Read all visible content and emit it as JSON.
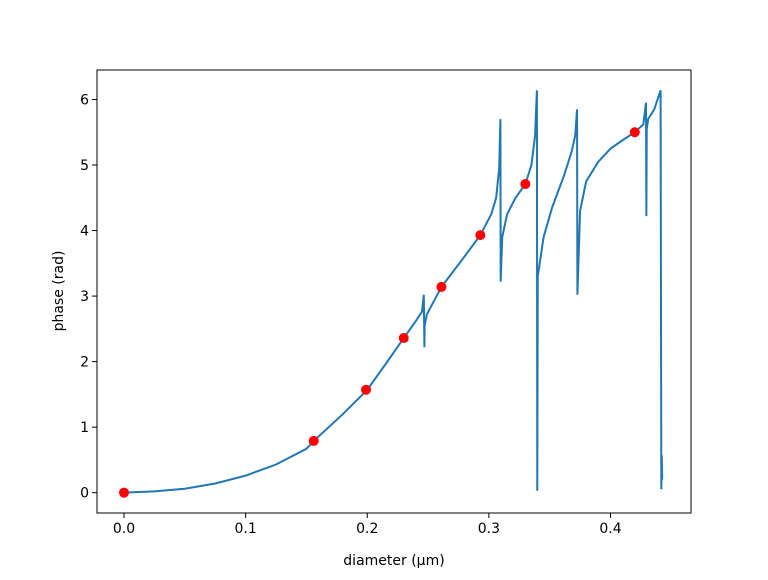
{
  "chart_data": {
    "type": "line",
    "xlabel": "diameter (μm)",
    "ylabel": "phase (rad)",
    "xlim": [
      -0.0222,
      0.4662
    ],
    "ylim": [
      -0.31,
      6.45
    ],
    "xticks": [
      {
        "value": 0,
        "label": "0.0"
      },
      0.1,
      0.2,
      0.3,
      0.4
    ],
    "yticks": [
      0,
      1,
      2,
      3,
      4,
      5,
      6
    ],
    "series": [
      {
        "type": "line",
        "color": "#1f77b4",
        "x": [
          0,
          0.025,
          0.05,
          0.075,
          0.1,
          0.125,
          0.15,
          0.156,
          0.18,
          0.2,
          0.215,
          0.23,
          0.24,
          0.245,
          0.2465,
          0.247,
          0.2472,
          0.249,
          0.261,
          0.277,
          0.293,
          0.302,
          0.306,
          0.3085,
          0.3095,
          0.3097,
          0.311,
          0.315,
          0.322,
          0.33,
          0.335,
          0.338,
          0.3395,
          0.3398,
          0.3402,
          0.345,
          0.352,
          0.362,
          0.368,
          0.371,
          0.3725,
          0.3728,
          0.375,
          0.38,
          0.39,
          0.4,
          0.41,
          0.42,
          0.427,
          0.4292,
          0.4295,
          0.4298,
          0.431,
          0.436,
          0.4412,
          0.4418,
          0.4422,
          0.4425
        ],
        "values": [
          0,
          0.02,
          0.06,
          0.14,
          0.26,
          0.43,
          0.67,
          0.79,
          1.2,
          1.57,
          1.96,
          2.36,
          2.62,
          2.76,
          3.02,
          2.22,
          2.55,
          2.72,
          3.14,
          3.53,
          3.93,
          4.25,
          4.5,
          4.95,
          5.7,
          3.22,
          3.9,
          4.25,
          4.5,
          4.71,
          5.0,
          5.45,
          6.14,
          0.03,
          3.3,
          3.9,
          4.35,
          4.85,
          5.2,
          5.45,
          5.85,
          3.02,
          4.3,
          4.75,
          5.05,
          5.25,
          5.38,
          5.5,
          5.62,
          5.95,
          4.22,
          5.55,
          5.7,
          5.85,
          6.14,
          0.05,
          0.57,
          0.2
        ]
      },
      {
        "type": "scatter",
        "color": "#ff0000",
        "x": [
          0,
          0.156,
          0.199,
          0.23,
          0.261,
          0.293,
          0.33,
          0.42
        ],
        "values": [
          0,
          0.79,
          1.57,
          2.36,
          3.14,
          3.93,
          4.71,
          5.5
        ]
      }
    ]
  }
}
